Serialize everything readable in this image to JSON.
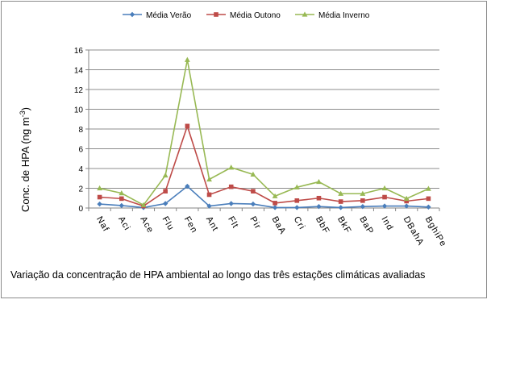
{
  "caption": "Variação da concentração de HPA ambiental ao longo das três estações climáticas avaliadas",
  "chart_data": {
    "type": "line",
    "title": "",
    "ylabel": "Conc. de HPA (ng m⁻³)",
    "ylabel_main": "Conc. de HPA (ng m",
    "ylabel_sup": "-3",
    "ylabel_close": ")",
    "xlabel": "",
    "ylim": [
      0,
      16
    ],
    "yticks": [
      0,
      2,
      4,
      6,
      8,
      10,
      12,
      14,
      16
    ],
    "grid": true,
    "legend_position": "top",
    "categories": [
      "Naf",
      "Aci",
      "Ace",
      "Flu",
      "Fen",
      "Ant",
      "Flt",
      "Pir",
      "BaA",
      "Cri",
      "BbF",
      "BkF",
      "BaP",
      "Ind",
      "DBahA",
      "BghiPe"
    ],
    "series": [
      {
        "name": "Média Verão",
        "color": "#4a7ebb",
        "marker": "diamond",
        "values": [
          0.4,
          0.25,
          0.05,
          0.45,
          2.2,
          0.2,
          0.45,
          0.4,
          0.05,
          0.05,
          0.15,
          0.05,
          0.15,
          0.2,
          0.2,
          0.1
        ]
      },
      {
        "name": "Média Outono",
        "color": "#be4b48",
        "marker": "square",
        "values": [
          1.1,
          0.95,
          0.2,
          1.7,
          8.3,
          1.35,
          2.15,
          1.7,
          0.5,
          0.75,
          1.0,
          0.65,
          0.75,
          1.1,
          0.7,
          0.95
        ]
      },
      {
        "name": "Média Inverno",
        "color": "#98b954",
        "marker": "triangle",
        "values": [
          2.0,
          1.5,
          0.3,
          3.3,
          15.0,
          2.9,
          4.1,
          3.4,
          1.2,
          2.1,
          2.65,
          1.45,
          1.45,
          2.0,
          0.95,
          1.95
        ]
      }
    ]
  }
}
